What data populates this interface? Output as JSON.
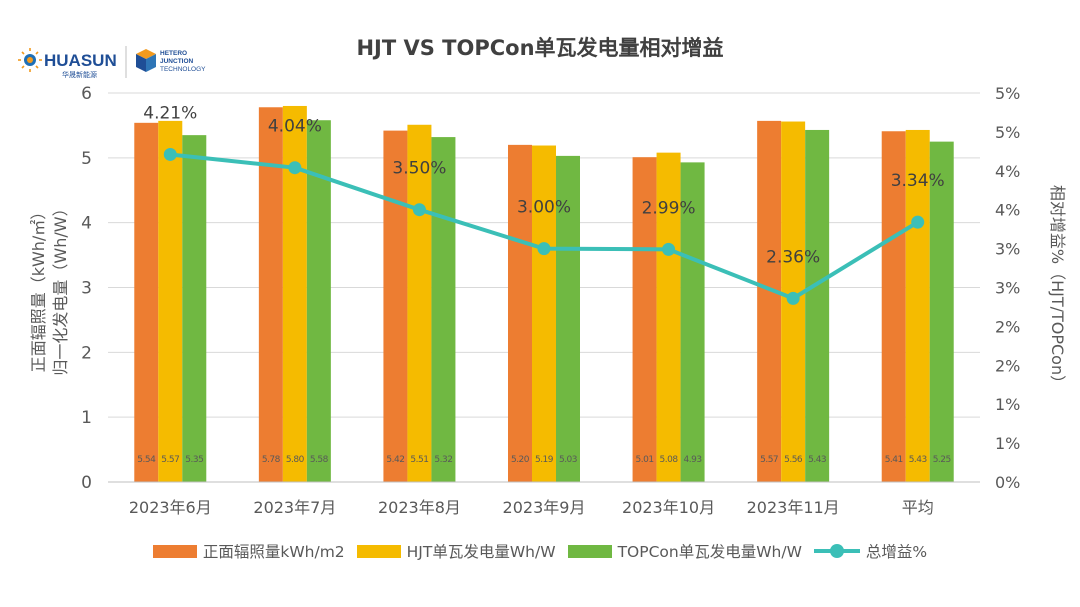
{
  "logo": {
    "brand": "HUASUN",
    "brand_cn": "华晟新能源",
    "sub_lines": [
      "HETERO",
      "JUNCTION",
      "TECHNOLOGY"
    ]
  },
  "colors": {
    "irradiance": "#ED7D31",
    "hjt": "#F5BB00",
    "topcon": "#70B842",
    "gain": "#3BBFB7",
    "axis_text": "#595959",
    "grid": "#D9D9D9"
  },
  "chart_data": {
    "type": "bar",
    "title": "HJT VS TOPCon单瓦发电量相对增益",
    "categories": [
      "2023年6月",
      "2023年7月",
      "2023年8月",
      "2023年9月",
      "2023年10月",
      "2023年11月",
      "平均"
    ],
    "series": [
      {
        "name": "正面辐照量kWh/m2",
        "key": "irradiance",
        "values": [
          5.54,
          5.78,
          5.42,
          5.2,
          5.01,
          5.57,
          5.41
        ],
        "labels": [
          "5.54",
          "5.78",
          "5.42",
          "5.20",
          "5.01",
          "5.57",
          "5.41"
        ]
      },
      {
        "name": "HJT单瓦发电量Wh/W",
        "key": "hjt",
        "values": [
          5.57,
          5.8,
          5.51,
          5.19,
          5.08,
          5.56,
          5.43
        ],
        "labels": [
          "5.57",
          "5.80",
          "5.51",
          "5.19",
          "5.08",
          "5.56",
          "5.43"
        ]
      },
      {
        "name": "TOPCon单瓦发电量Wh/W",
        "key": "topcon",
        "values": [
          5.35,
          5.58,
          5.32,
          5.03,
          4.93,
          5.43,
          5.25
        ],
        "labels": [
          "5.35",
          "5.58",
          "5.32",
          "5.03",
          "4.93",
          "5.43",
          "5.25"
        ]
      }
    ],
    "line_series": {
      "name": "总增益%",
      "key": "gain",
      "values": [
        4.21,
        4.04,
        3.5,
        3.0,
        2.99,
        2.36,
        3.34
      ],
      "labels": [
        "4.21%",
        "4.04%",
        "3.50%",
        "3.00%",
        "2.99%",
        "2.36%",
        "3.34%"
      ]
    },
    "y_left": {
      "min": 0,
      "max": 6,
      "ticks": [
        "0",
        "1",
        "2",
        "3",
        "4",
        "5",
        "6"
      ],
      "label_lines": [
        "正面辐照量（kWh/㎡）",
        "归一化发电量（Wh/W）"
      ]
    },
    "y_right": {
      "min": 0,
      "max": 5,
      "ticks": [
        "0%",
        "1%",
        "1%",
        "2%",
        "2%",
        "3%",
        "3%",
        "4%",
        "4%",
        "5%",
        "5%"
      ],
      "label": "相对增益%（HJT/TOPCon）"
    },
    "gridlines": true,
    "legend_position": "bottom"
  }
}
